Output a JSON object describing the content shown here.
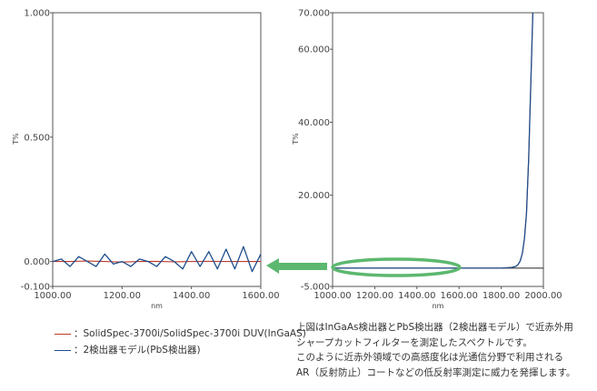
{
  "chart_data": [
    {
      "type": "line",
      "xlabel": "nm",
      "ylabel": "T%",
      "xlim": [
        1000,
        1600
      ],
      "ylim": [
        -0.1,
        1.0
      ],
      "x_ticks": [
        "1000.00",
        "1200.00",
        "1400.00",
        "1600.00"
      ],
      "y_ticks": [
        "-0.100",
        "0.000",
        "0.500",
        "1.000"
      ],
      "grid": false,
      "series": [
        {
          "name": "：SolidSpec-3700i/SolidSpec-3700i DUV(InGaAS)",
          "color": "#c0392b",
          "x": [
            1000,
            1050,
            1100,
            1150,
            1200,
            1250,
            1300,
            1350,
            1400,
            1450,
            1500,
            1550,
            1600
          ],
          "y": [
            0.0,
            0.0,
            0.002,
            0.0,
            -0.002,
            0.0,
            0.001,
            -0.001,
            0.0,
            0.001,
            0.0,
            0.0,
            0.0
          ]
        },
        {
          "name": "：2検出器モデル(PbS検出器)",
          "color": "#1f4e8c",
          "x": [
            1000,
            1025,
            1050,
            1075,
            1100,
            1125,
            1150,
            1175,
            1200,
            1225,
            1250,
            1275,
            1300,
            1325,
            1350,
            1375,
            1400,
            1425,
            1450,
            1475,
            1500,
            1525,
            1550,
            1575,
            1600
          ],
          "y": [
            0.0,
            0.01,
            -0.02,
            0.02,
            0.0,
            -0.02,
            0.03,
            -0.01,
            0.0,
            -0.02,
            0.01,
            0.0,
            -0.02,
            0.02,
            0.0,
            -0.03,
            0.04,
            -0.02,
            0.04,
            -0.03,
            0.05,
            -0.03,
            0.06,
            -0.04,
            0.03
          ]
        }
      ]
    },
    {
      "type": "line",
      "xlabel": "nm",
      "ylabel": "T%",
      "xlim": [
        1000,
        2000
      ],
      "ylim": [
        -5,
        70
      ],
      "x_ticks": [
        "1000.00",
        "1200.00",
        "1400.00",
        "1600.00",
        "1800.00",
        "2000.00"
      ],
      "y_ticks": [
        "-5.000",
        "20.000",
        "40.000",
        "60.000",
        "70.000"
      ],
      "grid": false,
      "series": [
        {
          "name": "：SolidSpec-3700i/SolidSpec-3700i DUV(InGaAS)",
          "color": "#c0392b",
          "x": [
            1000,
            1200,
            1400,
            1600,
            1800,
            1850,
            1870,
            1880,
            1890,
            1900,
            1910,
            1920,
            1930,
            1940,
            1950
          ],
          "y": [
            0,
            0,
            0,
            0,
            0,
            0.2,
            0.5,
            1.0,
            2.0,
            4.0,
            8.0,
            15.0,
            30.0,
            50.0,
            70.0
          ]
        },
        {
          "name": "：2検出器モデル(PbS検出器)",
          "color": "#1f4e8c",
          "x": [
            1000,
            1200,
            1400,
            1600,
            1800,
            1850,
            1870,
            1880,
            1890,
            1900,
            1910,
            1920,
            1930,
            1940,
            1950
          ],
          "y": [
            0,
            0,
            0,
            0,
            0,
            0.2,
            0.5,
            1.0,
            2.0,
            4.0,
            8.0,
            15.0,
            30.0,
            50.0,
            70.0
          ]
        }
      ]
    }
  ],
  "legend": [
    {
      "label": "：SolidSpec-3700i/SolidSpec-3700i DUV(InGaAS)",
      "color": "#c0392b"
    },
    {
      "label": "：2検出器モデル(PbS検出器)",
      "color": "#1f4e8c"
    }
  ],
  "caption": [
    "上図はInGaAs検出器とPbS検出器（2検出器モデル）で近赤外用",
    "シャープカットフィルターを測定したスペクトルです。",
    "このように近赤外領域での高感度化は光通信分野で利用される",
    "AR（反射防止）コートなどの低反射率測定に威力を発揮します。"
  ],
  "highlight_color": "#5cb86f"
}
